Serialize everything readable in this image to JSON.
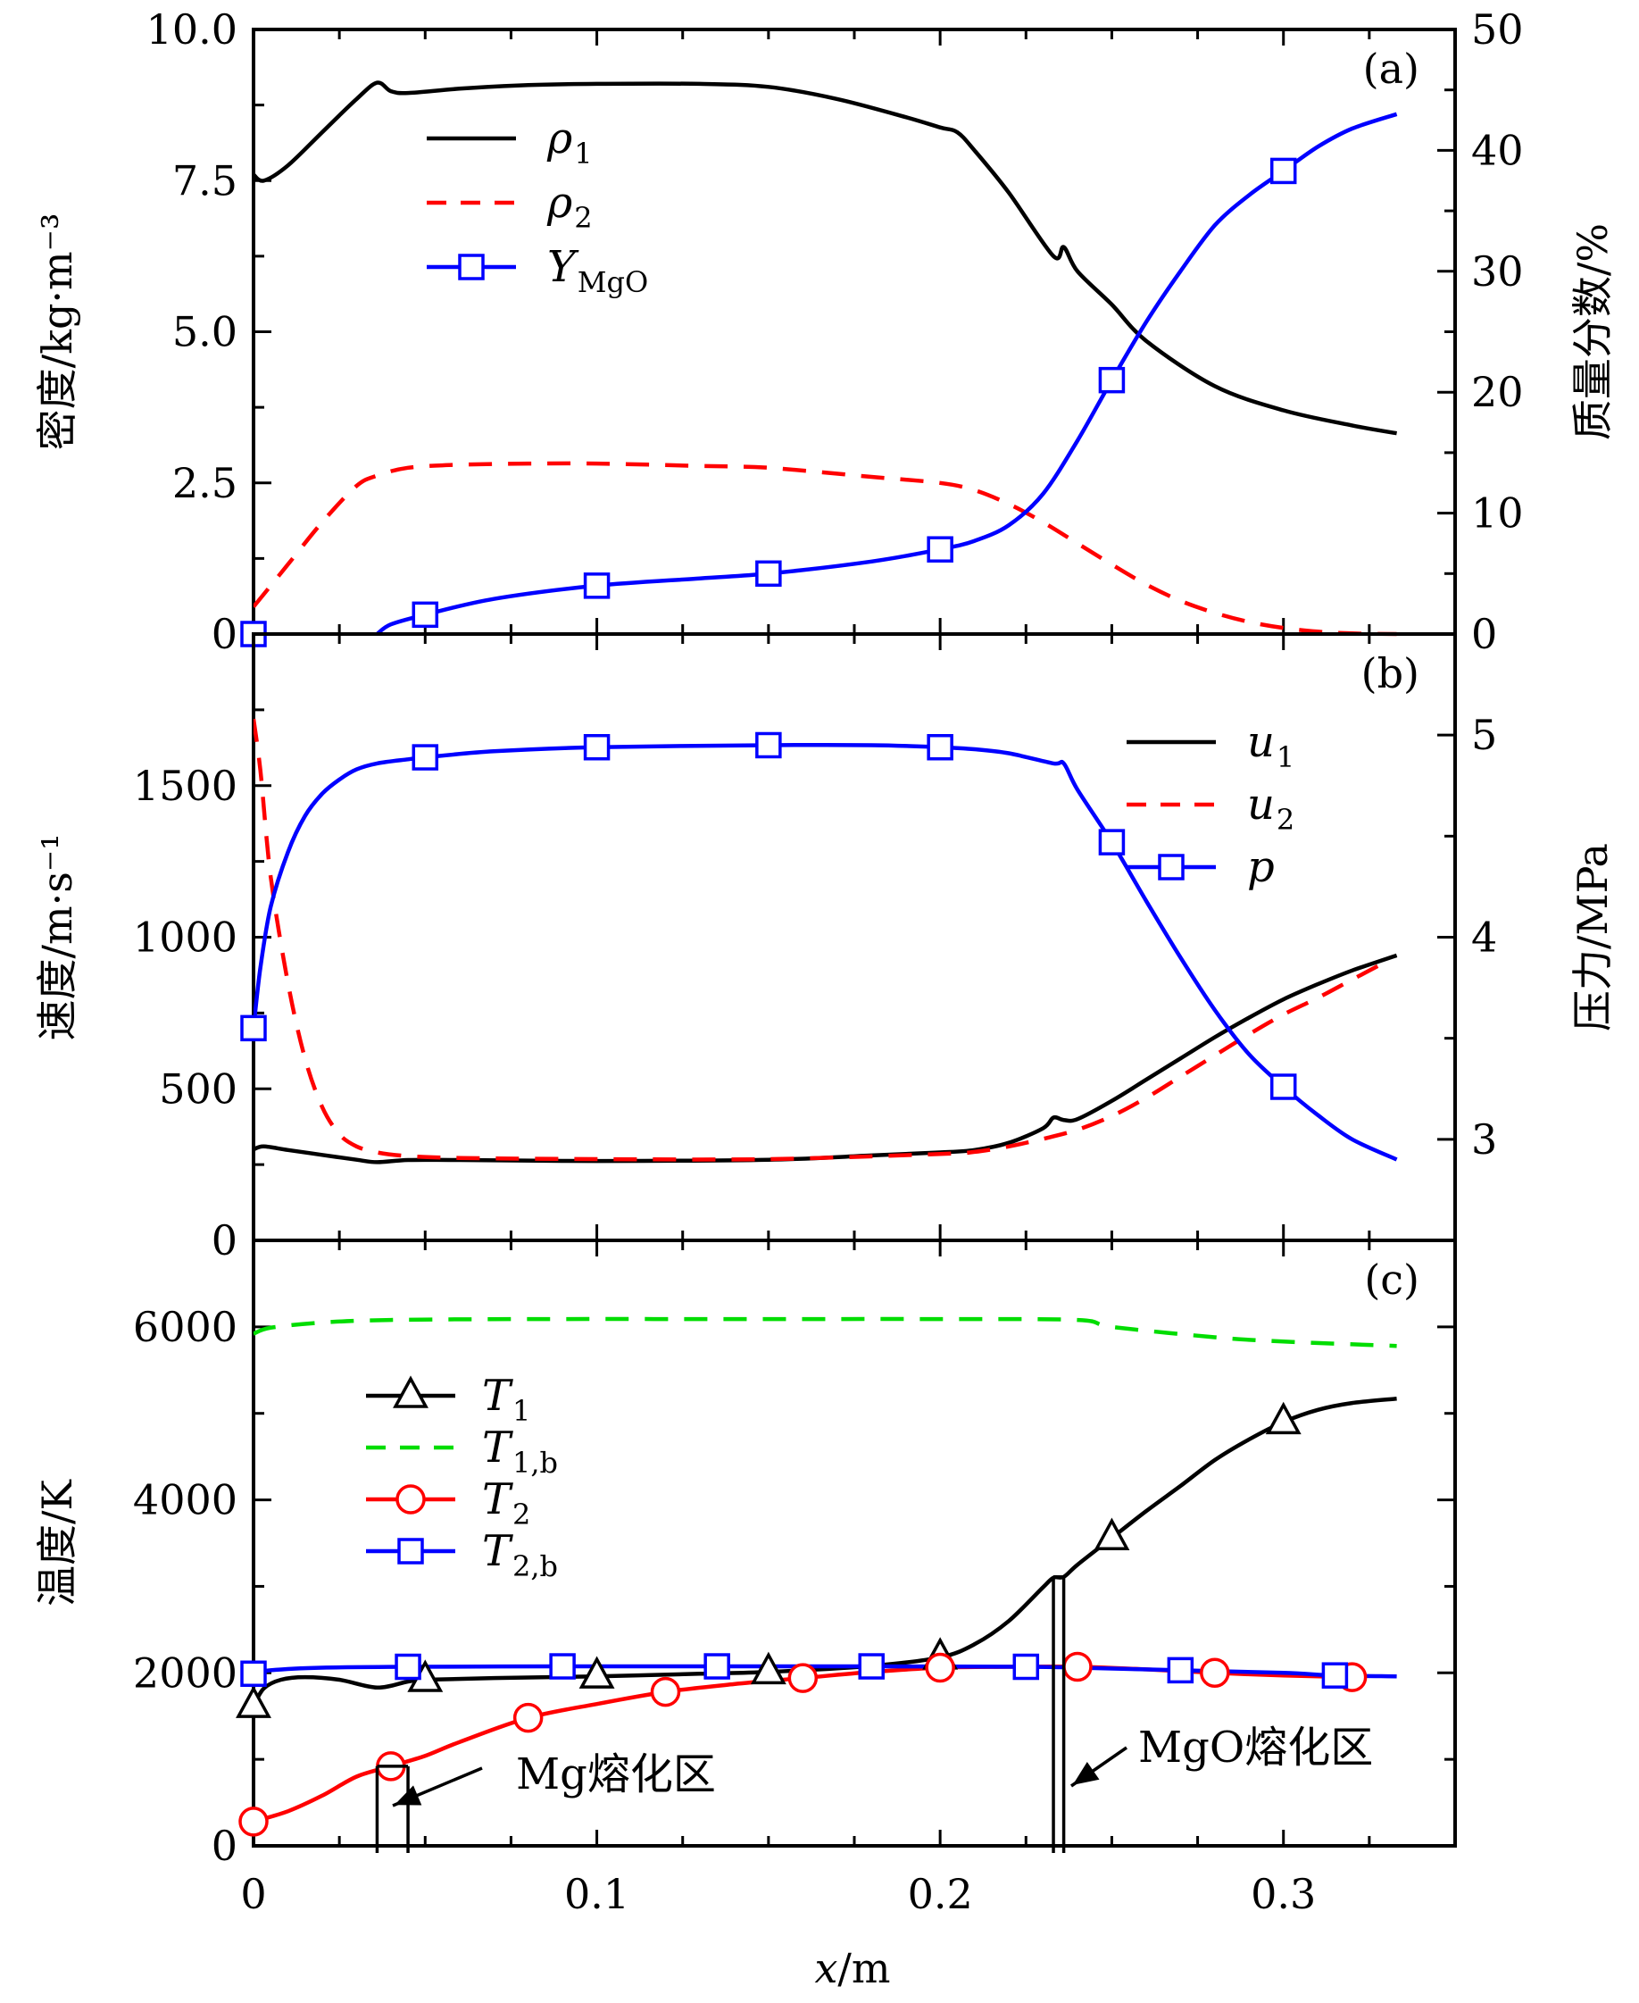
{
  "chart_data": [
    {
      "type": "line",
      "panel_label": "(a)",
      "xlabel": "x/m",
      "xlim": [
        0,
        0.35
      ],
      "x_ticks": [
        "0",
        "0.1",
        "0.2",
        "0.3"
      ],
      "ylabel": "密度/kg·m⁻³",
      "ylim": [
        0,
        10
      ],
      "y_ticks": [
        "0",
        "2.5",
        "5.0",
        "7.5",
        "10.0"
      ],
      "y2label": "质量分数/%",
      "y2lim": [
        0,
        50
      ],
      "y2_ticks": [
        "0",
        "10",
        "20",
        "30",
        "40",
        "50"
      ],
      "legend_position": "upper-left",
      "series": [
        {
          "name": "ρ1",
          "label_main": "ρ",
          "label_sub": "1",
          "axis": "left",
          "color": "#000000",
          "style": "solid",
          "marker": "none",
          "x": [
            0,
            0.003,
            0.01,
            0.02,
            0.03,
            0.036,
            0.04,
            0.045,
            0.06,
            0.08,
            0.1,
            0.13,
            0.15,
            0.17,
            0.19,
            0.2,
            0.205,
            0.21,
            0.22,
            0.233,
            0.236,
            0.24,
            0.25,
            0.26,
            0.28,
            0.3,
            0.32,
            0.333
          ],
          "y": [
            7.6,
            7.5,
            7.75,
            8.3,
            8.85,
            9.12,
            8.98,
            8.95,
            9.02,
            9.08,
            9.1,
            9.1,
            9.05,
            8.85,
            8.55,
            8.38,
            8.3,
            8.0,
            7.3,
            6.25,
            6.4,
            6.0,
            5.45,
            4.85,
            4.1,
            3.7,
            3.45,
            3.32
          ]
        },
        {
          "name": "ρ2",
          "label_main": "ρ",
          "label_sub": "2",
          "axis": "left",
          "color": "#ff0000",
          "style": "dashed",
          "marker": "none",
          "x": [
            0,
            0.01,
            0.02,
            0.03,
            0.036,
            0.045,
            0.06,
            0.08,
            0.1,
            0.13,
            0.15,
            0.18,
            0.2,
            0.21,
            0.22,
            0.23,
            0.24,
            0.25,
            0.26,
            0.27,
            0.28,
            0.29,
            0.3,
            0.31,
            0.32,
            0.333
          ],
          "y": [
            0.45,
            1.15,
            1.85,
            2.45,
            2.62,
            2.75,
            2.8,
            2.82,
            2.82,
            2.78,
            2.75,
            2.6,
            2.5,
            2.38,
            2.15,
            1.85,
            1.5,
            1.15,
            0.82,
            0.55,
            0.35,
            0.2,
            0.1,
            0.04,
            0.01,
            0.0
          ]
        },
        {
          "name": "YMgO",
          "label_main": "Y",
          "label_sub": "MgO",
          "axis": "right",
          "color": "#0000ff",
          "style": "solid",
          "marker": "square",
          "x": [
            0.036,
            0.04,
            0.05,
            0.07,
            0.1,
            0.13,
            0.15,
            0.18,
            0.2,
            0.21,
            0.22,
            0.23,
            0.24,
            0.25,
            0.26,
            0.27,
            0.28,
            0.29,
            0.3,
            0.31,
            0.32,
            0.333
          ],
          "y": [
            0,
            0.8,
            1.6,
            2.9,
            4.0,
            4.6,
            5.0,
            6.0,
            7.0,
            7.7,
            9.0,
            11.6,
            16.0,
            21.0,
            25.8,
            30.0,
            33.8,
            36.3,
            38.3,
            40.3,
            41.8,
            43.0
          ],
          "marker_x": [
            0,
            0.05,
            0.1,
            0.15,
            0.2,
            0.25,
            0.3
          ],
          "marker_y": [
            0,
            1.6,
            4.0,
            5.0,
            7.0,
            21.0,
            38.3
          ]
        }
      ]
    },
    {
      "type": "line",
      "panel_label": "(b)",
      "xlabel": "x/m",
      "xlim": [
        0,
        0.35
      ],
      "ylabel": "速度/m·s⁻¹",
      "ylim": [
        0,
        2000
      ],
      "y_ticks": [
        "0",
        "500",
        "1000",
        "1500"
      ],
      "y2label": "压力/MPa",
      "y2lim": [
        2.5,
        5.5
      ],
      "y2_ticks": [
        "3",
        "4",
        "5"
      ],
      "legend_position": "right",
      "series": [
        {
          "name": "u1",
          "label_main": "u",
          "label_sub": "1",
          "axis": "left",
          "color": "#000000",
          "style": "solid",
          "marker": "none",
          "x": [
            0,
            0.003,
            0.01,
            0.02,
            0.03,
            0.036,
            0.045,
            0.06,
            0.1,
            0.15,
            0.18,
            0.2,
            0.21,
            0.22,
            0.23,
            0.233,
            0.236,
            0.24,
            0.25,
            0.26,
            0.27,
            0.28,
            0.29,
            0.3,
            0.31,
            0.32,
            0.333
          ],
          "y": [
            300,
            310,
            298,
            282,
            266,
            258,
            265,
            265,
            262,
            266,
            280,
            290,
            298,
            322,
            370,
            405,
            397,
            400,
            460,
            530,
            600,
            670,
            735,
            795,
            845,
            890,
            940
          ]
        },
        {
          "name": "u2",
          "label_main": "u",
          "label_sub": "2",
          "axis": "left",
          "color": "#ff0000",
          "style": "dashed",
          "marker": "none",
          "x": [
            0,
            0.002,
            0.005,
            0.01,
            0.015,
            0.02,
            0.025,
            0.03,
            0.036,
            0.045,
            0.06,
            0.1,
            0.15,
            0.2,
            0.21,
            0.22,
            0.23,
            0.24,
            0.25,
            0.26,
            0.27,
            0.28,
            0.29,
            0.3,
            0.31,
            0.32,
            0.33
          ],
          "y": [
            1720,
            1550,
            1200,
            850,
            600,
            440,
            350,
            310,
            290,
            278,
            272,
            268,
            268,
            285,
            292,
            310,
            335,
            365,
            410,
            470,
            540,
            610,
            680,
            745,
            800,
            860,
            920
          ]
        },
        {
          "name": "p",
          "label_main": "p",
          "label_sub": "",
          "axis": "right",
          "color": "#0000ff",
          "style": "solid",
          "marker": "square",
          "x": [
            0,
            0.002,
            0.005,
            0.01,
            0.015,
            0.02,
            0.025,
            0.03,
            0.036,
            0.045,
            0.05,
            0.07,
            0.1,
            0.15,
            0.18,
            0.2,
            0.21,
            0.22,
            0.233,
            0.236,
            0.24,
            0.25,
            0.26,
            0.27,
            0.28,
            0.29,
            0.3,
            0.31,
            0.32,
            0.333
          ],
          "y": [
            3.55,
            3.85,
            4.15,
            4.42,
            4.6,
            4.71,
            4.78,
            4.83,
            4.86,
            4.88,
            4.89,
            4.92,
            4.94,
            4.95,
            4.95,
            4.94,
            4.93,
            4.91,
            4.86,
            4.86,
            4.73,
            4.47,
            4.18,
            3.9,
            3.64,
            3.42,
            3.26,
            3.12,
            3.0,
            2.9
          ],
          "marker_x": [
            0,
            0.05,
            0.1,
            0.15,
            0.2,
            0.25,
            0.3
          ],
          "marker_y": [
            3.55,
            4.89,
            4.94,
            4.95,
            4.94,
            4.47,
            3.26
          ]
        }
      ]
    },
    {
      "type": "line",
      "panel_label": "(c)",
      "xlabel": "x/m",
      "xlim": [
        0,
        0.35
      ],
      "x_ticks": [
        "0",
        "0.1",
        "0.2",
        "0.3"
      ],
      "ylabel": "温度/K",
      "ylim": [
        0,
        7000
      ],
      "y_ticks": [
        "0",
        "2000",
        "4000",
        "6000"
      ],
      "legend_position": "left",
      "series": [
        {
          "name": "T1",
          "label_main": "T",
          "label_sub": "1",
          "color": "#000000",
          "style": "solid",
          "marker": "triangle",
          "x": [
            0,
            0.003,
            0.008,
            0.015,
            0.025,
            0.036,
            0.045,
            0.05,
            0.07,
            0.1,
            0.13,
            0.15,
            0.18,
            0.2,
            0.21,
            0.22,
            0.23,
            0.233,
            0.236,
            0.24,
            0.25,
            0.26,
            0.27,
            0.28,
            0.29,
            0.3,
            0.31,
            0.32,
            0.333
          ],
          "y": [
            1620,
            1820,
            1920,
            1950,
            1920,
            1830,
            1900,
            1920,
            1940,
            1960,
            1990,
            2010,
            2080,
            2180,
            2330,
            2600,
            2990,
            3100,
            3110,
            3250,
            3560,
            3870,
            4160,
            4460,
            4700,
            4900,
            5040,
            5120,
            5170
          ],
          "marker_x": [
            0,
            0.05,
            0.1,
            0.15,
            0.2,
            0.25,
            0.3
          ],
          "marker_y": [
            1620,
            1920,
            1960,
            2010,
            2180,
            3560,
            4900
          ]
        },
        {
          "name": "T1,b",
          "label_main": "T",
          "label_sub": "1,b",
          "color": "#00dd00",
          "style": "dashed",
          "marker": "none",
          "x": [
            0,
            0.005,
            0.02,
            0.04,
            0.08,
            0.15,
            0.2,
            0.24,
            0.25,
            0.28,
            0.3,
            0.333
          ],
          "y": [
            5920,
            5990,
            6050,
            6080,
            6090,
            6090,
            6090,
            6080,
            6000,
            5880,
            5830,
            5780
          ]
        },
        {
          "name": "T2",
          "label_main": "T",
          "label_sub": "2",
          "color": "#ff0000",
          "style": "solid",
          "marker": "circle",
          "x": [
            0,
            0.01,
            0.02,
            0.03,
            0.04,
            0.05,
            0.06,
            0.08,
            0.1,
            0.12,
            0.14,
            0.16,
            0.18,
            0.2,
            0.22,
            0.24,
            0.26,
            0.28,
            0.3,
            0.32
          ],
          "y": [
            280,
            400,
            580,
            800,
            920,
            1040,
            1200,
            1480,
            1640,
            1780,
            1870,
            1940,
            2010,
            2060,
            2070,
            2070,
            2040,
            2000,
            1970,
            1950
          ],
          "marker_x": [
            0,
            0.04,
            0.08,
            0.12,
            0.16,
            0.2,
            0.24,
            0.28,
            0.32
          ],
          "marker_y": [
            280,
            920,
            1480,
            1780,
            1940,
            2060,
            2070,
            2000,
            1950
          ]
        },
        {
          "name": "T2,b",
          "label_main": "T",
          "label_sub": "2,b",
          "color": "#0000ff",
          "style": "solid",
          "marker": "square",
          "x": [
            0,
            0.005,
            0.02,
            0.045,
            0.09,
            0.135,
            0.18,
            0.225,
            0.24,
            0.27,
            0.3,
            0.315,
            0.333
          ],
          "y": [
            1990,
            2030,
            2060,
            2070,
            2075,
            2075,
            2075,
            2070,
            2060,
            2030,
            2000,
            1970,
            1960
          ],
          "marker_x": [
            0,
            0.045,
            0.09,
            0.135,
            0.18,
            0.225,
            0.27,
            0.315
          ],
          "marker_y": [
            1990,
            2070,
            2075,
            2075,
            2075,
            2070,
            2030,
            1970
          ]
        }
      ],
      "annotations": [
        {
          "text": "Mg熔化区",
          "x_range": [
            0.036,
            0.045
          ],
          "y_top": 920
        },
        {
          "text": "MgO熔化区",
          "x_range": [
            0.233,
            0.236
          ],
          "y_top": 3110
        }
      ]
    }
  ],
  "figure": {
    "xlabel_main": "x",
    "xlabel_unit": "/m"
  }
}
